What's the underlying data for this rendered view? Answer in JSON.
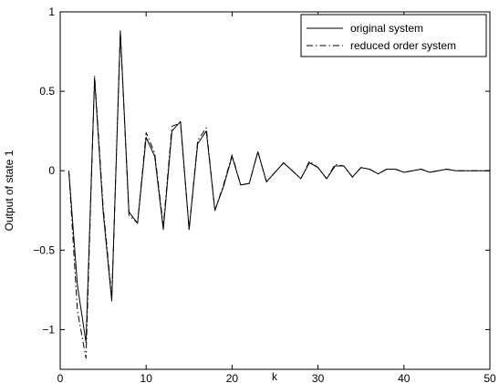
{
  "chart_data": {
    "type": "line",
    "title": "",
    "xlabel": "k",
    "ylabel": "Output of state 1",
    "xlim": [
      0,
      50
    ],
    "ylim": [
      -1.25,
      1
    ],
    "xticks": [
      0,
      10,
      20,
      30,
      40,
      50
    ],
    "yticks": [
      -1,
      -0.5,
      0,
      0.5,
      1
    ],
    "xtick_labels": [
      "0",
      "10",
      "20",
      "30",
      "40",
      "50"
    ],
    "ytick_labels": [
      "−1",
      "−0.5",
      "0",
      "0.5",
      "1"
    ],
    "grid": false,
    "legend_position": "top-right",
    "x": [
      1,
      2,
      3,
      4,
      5,
      6,
      7,
      8,
      9,
      10,
      11,
      12,
      13,
      14,
      15,
      16,
      17,
      18,
      19,
      20,
      21,
      22,
      23,
      24,
      25,
      26,
      27,
      28,
      29,
      30,
      31,
      32,
      33,
      34,
      35,
      36,
      37,
      38,
      39,
      40,
      41,
      42,
      43,
      44,
      45,
      46,
      47,
      48,
      49,
      50
    ],
    "series": [
      {
        "name": "original system",
        "style": "solid",
        "values": [
          0.0,
          -0.72,
          -1.08,
          0.58,
          -0.26,
          -0.82,
          0.88,
          -0.26,
          -0.33,
          0.21,
          0.09,
          -0.37,
          0.25,
          0.31,
          -0.37,
          0.17,
          0.25,
          -0.25,
          -0.1,
          0.09,
          -0.09,
          -0.08,
          0.12,
          -0.07,
          -0.01,
          0.05,
          0.0,
          -0.05,
          0.05,
          0.02,
          -0.05,
          0.03,
          0.03,
          -0.04,
          0.02,
          0.01,
          -0.02,
          0.01,
          0.01,
          -0.01,
          0.0,
          0.01,
          -0.01,
          0.0,
          0.01,
          0.0,
          0.0,
          0.0,
          0.0,
          0.0
        ]
      },
      {
        "name": "reduced order system",
        "style": "dashdot",
        "values": [
          0.0,
          -0.88,
          -1.18,
          0.6,
          -0.23,
          -0.8,
          0.87,
          -0.28,
          -0.33,
          0.24,
          0.11,
          -0.35,
          0.28,
          0.3,
          -0.37,
          0.19,
          0.27,
          -0.25,
          -0.09,
          0.1,
          -0.09,
          -0.08,
          0.12,
          -0.07,
          -0.01,
          0.05,
          0.0,
          -0.05,
          0.06,
          0.02,
          -0.05,
          0.04,
          0.03,
          -0.04,
          0.02,
          0.01,
          -0.02,
          0.01,
          0.01,
          -0.01,
          0.0,
          0.01,
          -0.01,
          0.0,
          0.01,
          0.0,
          0.0,
          0.0,
          0.0,
          0.0
        ]
      }
    ]
  }
}
